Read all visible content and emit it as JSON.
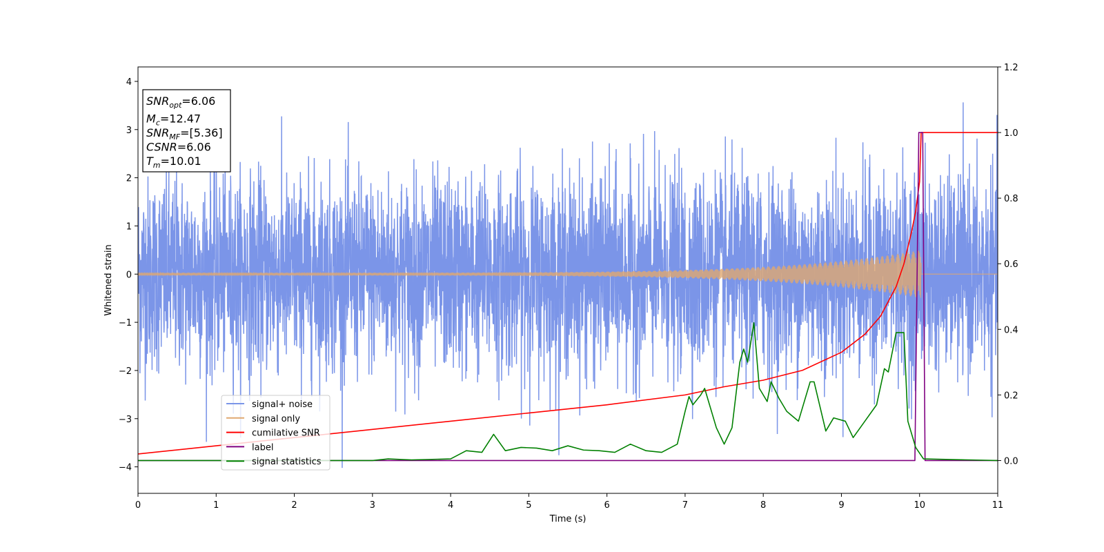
{
  "chart_data": {
    "type": "line",
    "xlabel": "Time (s)",
    "ylabel": "Whitened strain",
    "xlim": [
      0,
      11
    ],
    "ylim_left": [
      -4.55,
      4.3
    ],
    "ylim_right": [
      -0.1,
      1.2
    ],
    "x_ticks": [
      0,
      1,
      2,
      3,
      4,
      5,
      6,
      7,
      8,
      9,
      10,
      11
    ],
    "y_ticks_left": [
      -4,
      -3,
      -2,
      -1,
      0,
      1,
      2,
      3,
      4
    ],
    "y_ticks_right": [
      0.0,
      0.2,
      0.4,
      0.6,
      0.8,
      1.0,
      1.2
    ],
    "grid": false,
    "legend_position": "lower-left",
    "annotation": {
      "lines": [
        {
          "sym": "SNR",
          "sub": "opt",
          "value": "=6.06"
        },
        {
          "sym": "M",
          "sub": "c",
          "value": "=12.47"
        },
        {
          "sym": "SNR",
          "sub": "MF",
          "value": "=[5.36]"
        },
        {
          "sym": "CSNR",
          "sub": "",
          "value": "=6.06"
        },
        {
          "sym": "T",
          "sub": "m",
          "value": "=10.01"
        }
      ]
    },
    "series": [
      {
        "name": "signal+ noise",
        "color": "#7b95e8",
        "axis": "left",
        "kind": "noise",
        "sigma": 1.0,
        "x_range": [
          0,
          11
        ]
      },
      {
        "name": "signal only",
        "color": "#e0a870",
        "axis": "left",
        "kind": "chirp",
        "x_range": [
          0,
          10.02
        ],
        "amplitude_start": 0.03,
        "amplitude_end": 0.5
      },
      {
        "name": "cumilative SNR",
        "color": "#ff0000",
        "axis": "right",
        "x": [
          0,
          1,
          2,
          3,
          4,
          5,
          6,
          7,
          7.5,
          8,
          8.5,
          9,
          9.3,
          9.5,
          9.7,
          9.8,
          9.9,
          9.95,
          10.0,
          10.02,
          10.5,
          11
        ],
        "y": [
          0.02,
          0.045,
          0.07,
          0.095,
          0.12,
          0.145,
          0.17,
          0.2,
          0.225,
          0.245,
          0.275,
          0.33,
          0.385,
          0.44,
          0.53,
          0.6,
          0.7,
          0.76,
          0.85,
          1.0,
          1.0,
          1.0
        ]
      },
      {
        "name": "label",
        "color": "#800080",
        "axis": "right",
        "x": [
          0,
          9.94,
          9.99,
          10.04,
          10.07,
          11
        ],
        "y": [
          0.0,
          0.0,
          1.0,
          1.0,
          0.0,
          0.0
        ]
      },
      {
        "name": "signal statistics",
        "color": "#008000",
        "axis": "right",
        "x": [
          0,
          1,
          2,
          3,
          3.2,
          3.5,
          4,
          4.2,
          4.4,
          4.55,
          4.7,
          4.9,
          5.1,
          5.3,
          5.5,
          5.7,
          5.9,
          6.1,
          6.3,
          6.5,
          6.7,
          6.9,
          7.0,
          7.05,
          7.1,
          7.2,
          7.25,
          7.4,
          7.5,
          7.6,
          7.7,
          7.75,
          7.8,
          7.88,
          7.95,
          8.05,
          8.1,
          8.2,
          8.3,
          8.45,
          8.6,
          8.65,
          8.8,
          8.9,
          9.05,
          9.15,
          9.3,
          9.45,
          9.55,
          9.6,
          9.7,
          9.8,
          9.85,
          9.95,
          10.05,
          11
        ],
        "y": [
          0.0,
          0.0,
          0.0,
          0.0,
          0.005,
          0.002,
          0.005,
          0.03,
          0.025,
          0.08,
          0.03,
          0.04,
          0.038,
          0.03,
          0.045,
          0.032,
          0.03,
          0.025,
          0.05,
          0.03,
          0.025,
          0.05,
          0.15,
          0.195,
          0.17,
          0.2,
          0.22,
          0.1,
          0.05,
          0.1,
          0.3,
          0.34,
          0.3,
          0.42,
          0.22,
          0.18,
          0.24,
          0.19,
          0.15,
          0.12,
          0.24,
          0.24,
          0.09,
          0.13,
          0.12,
          0.07,
          0.12,
          0.17,
          0.28,
          0.27,
          0.39,
          0.39,
          0.12,
          0.04,
          0.005,
          0.0
        ]
      }
    ]
  }
}
